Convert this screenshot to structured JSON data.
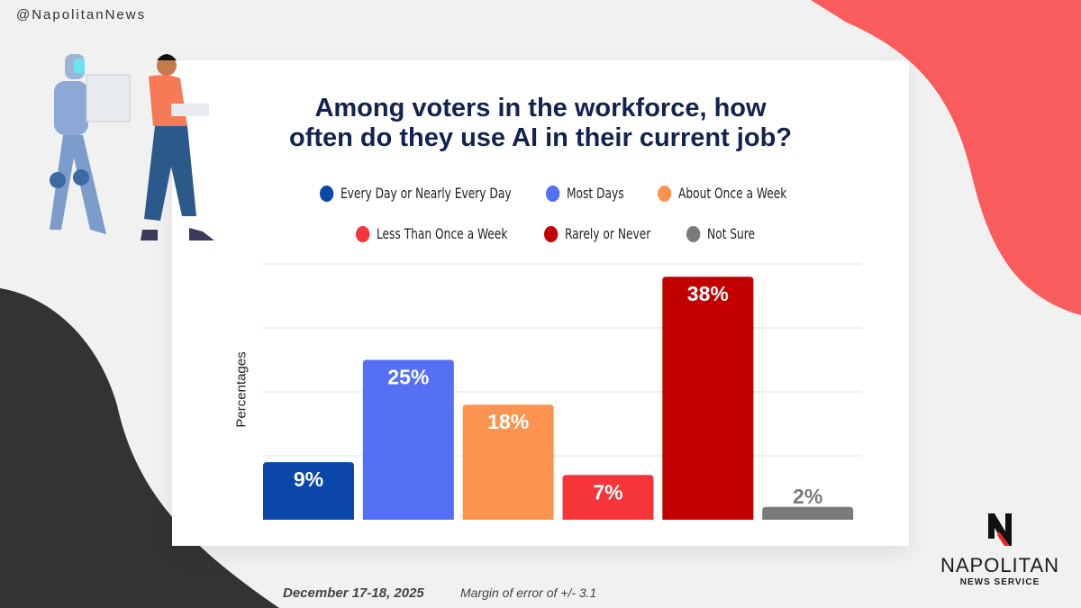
{
  "handle": "@NapolitanNews",
  "colors": {
    "accent_red": "#f95c5c",
    "dark": "#333333",
    "title": "#13224f"
  },
  "footer": {
    "date": "December 17-18, 2025",
    "margin": "Margin of error of +/- 3.1"
  },
  "logo": {
    "name": "NAPOLITAN",
    "sub": "NEWS SERVICE"
  },
  "chart_data": {
    "type": "bar",
    "title": "Among voters in the workforce, how often do they use AI in their current job?",
    "title_lines": [
      "Among voters in the workforce, how",
      "often do they use AI in their current job?"
    ],
    "xlabel": "",
    "ylabel": "Percentages",
    "ylim": [
      0,
      40
    ],
    "grid": true,
    "legend_position": "top",
    "categories": [
      "Every Day or Nearly Every Day",
      "Most Days",
      "About Once a Week",
      "Less Than Once a Week",
      "Rarely or Never",
      "Not Sure"
    ],
    "values": [
      9,
      25,
      18,
      7,
      38,
      2
    ],
    "labels": [
      "9%",
      "25%",
      "18%",
      "7%",
      "38%",
      "2%"
    ],
    "colors": [
      "#0a47a8",
      "#5470f5",
      "#fc944f",
      "#f5353a",
      "#c20000",
      "#7a7a7a"
    ]
  }
}
